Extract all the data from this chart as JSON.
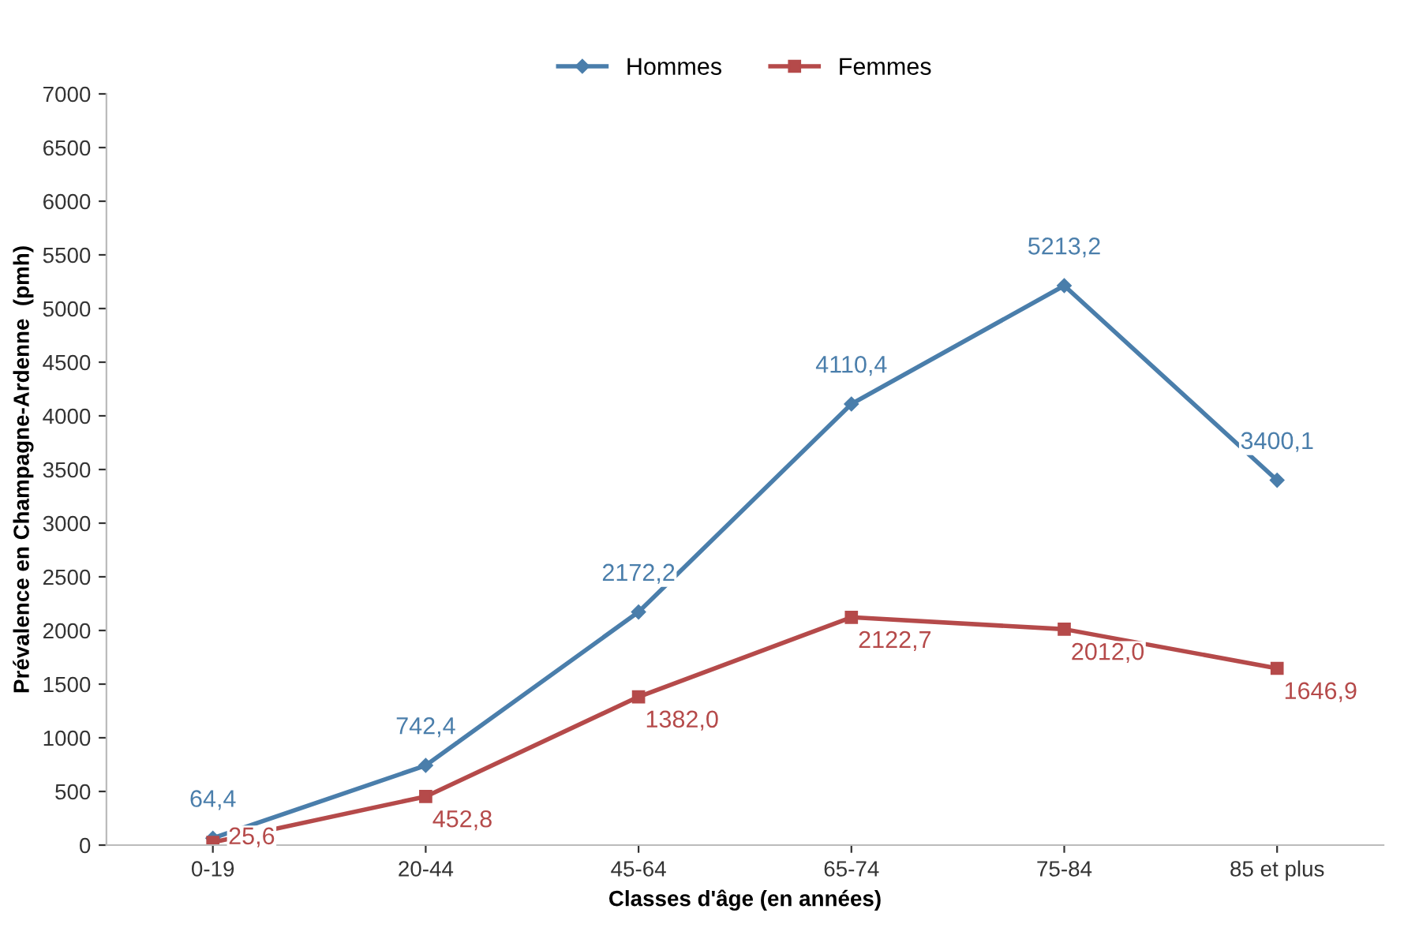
{
  "chart_data": {
    "type": "line",
    "xlabel": "Classes d'âge (en années)",
    "ylabel": "Prévalence en Champagne-Ardenne  (pmh)",
    "categories": [
      "0-19",
      "20-44",
      "45-64",
      "65-74",
      "75-84",
      "85 et plus"
    ],
    "series": [
      {
        "name": "Hommes",
        "color": "#4a7eab",
        "marker": "diamond",
        "values": [
          64.4,
          742.4,
          2172.2,
          4110.4,
          5213.2,
          3400.1
        ],
        "value_labels": [
          "64,4",
          "742,4",
          "2172,2",
          "4110,4",
          "5213,2",
          "3400,1"
        ]
      },
      {
        "name": "Femmes",
        "color": "#b54a4a",
        "marker": "square",
        "values": [
          25.6,
          452.8,
          1382.0,
          2122.7,
          2012.0,
          1646.9
        ],
        "value_labels": [
          "25,6",
          "452,8",
          "1382,0",
          "2122,7",
          "2012,0",
          "1646,9"
        ]
      }
    ],
    "ylim": [
      0,
      7000
    ],
    "yticks": [
      0,
      500,
      1000,
      1500,
      2000,
      2500,
      3000,
      3500,
      4000,
      4500,
      5000,
      5500,
      6000,
      6500,
      7000
    ],
    "grid": false,
    "legend": "top",
    "line_style": "solid"
  }
}
